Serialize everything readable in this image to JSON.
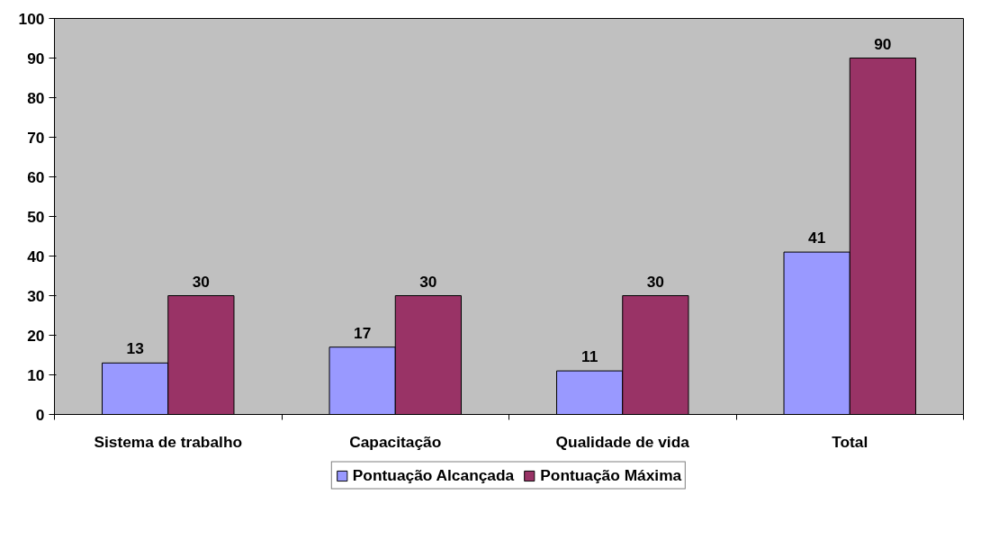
{
  "chart_data": {
    "type": "bar",
    "categories": [
      "Sistema de trabalho",
      "Capacitação",
      "Qualidade de vida",
      "Total"
    ],
    "series": [
      {
        "name": "Pontuação Alcançada",
        "color": "#9999ff",
        "values": [
          13,
          17,
          11,
          41
        ]
      },
      {
        "name": "Pontuação Máxima",
        "color": "#993366",
        "values": [
          30,
          30,
          30,
          90
        ]
      }
    ],
    "ylim": [
      0,
      100
    ],
    "yticks": [
      0,
      10,
      20,
      30,
      40,
      50,
      60,
      70,
      80,
      90,
      100
    ],
    "grid": false,
    "legend": "bottom",
    "data_labels": true
  }
}
